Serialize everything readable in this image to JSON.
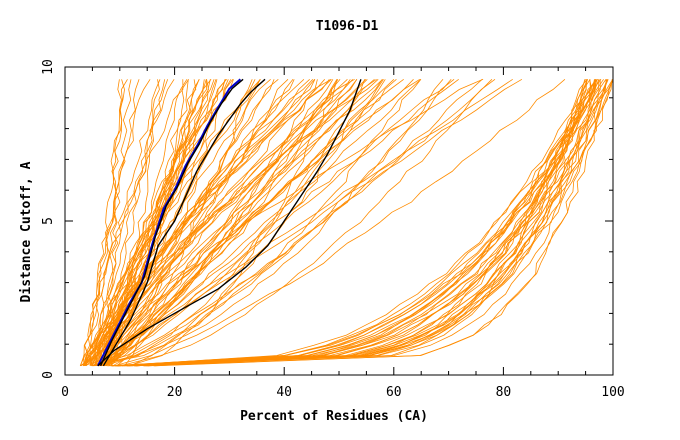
{
  "chart_data": {
    "type": "line",
    "title": "T1096-D1",
    "xlabel": "Percent of Residues (CA)",
    "ylabel": "Distance Cutoff, A",
    "xlim": [
      0,
      100
    ],
    "ylim": [
      0,
      10
    ],
    "x_ticks": [
      "0",
      "20",
      "40",
      "60",
      "80",
      "100"
    ],
    "y_ticks": [
      "0",
      "5",
      "10"
    ],
    "grid": false,
    "legend": "none",
    "colors": {
      "bundle": "#ff8c00",
      "highlight_black": "#000000",
      "highlight_blue": "#0000cc"
    },
    "series": [
      {
        "color": "#0000cc",
        "x": [
          6,
          8,
          10,
          12,
          14,
          16,
          18,
          20,
          22,
          24,
          26,
          28,
          30,
          32
        ],
        "y": [
          0.3,
          1.0,
          1.7,
          2.4,
          3.0,
          4.3,
          5.4,
          6.0,
          6.8,
          7.4,
          8.1,
          8.7,
          9.3,
          9.6
        ]
      },
      {
        "color": "#000000",
        "x": [
          6.5,
          8.5,
          10.5,
          12.5,
          14.5,
          16.5,
          18.5,
          20.5,
          22.5,
          24.5,
          26.5,
          28.5,
          30.5,
          32.5
        ],
        "y": [
          0.3,
          1.1,
          1.8,
          2.5,
          3.2,
          4.5,
          5.5,
          6.1,
          6.9,
          7.5,
          8.2,
          8.8,
          9.3,
          9.6
        ]
      },
      {
        "color": "#000000",
        "x": [
          7,
          9,
          12,
          15,
          17,
          20,
          22,
          24,
          26,
          28,
          30,
          32,
          34,
          36.5
        ],
        "y": [
          0.3,
          0.9,
          1.8,
          3.0,
          4.2,
          5.0,
          5.8,
          6.6,
          7.2,
          7.8,
          8.3,
          8.8,
          9.2,
          9.6
        ]
      },
      {
        "color": "#000000",
        "x": [
          6,
          9,
          15,
          22,
          28,
          33,
          37,
          40,
          43,
          46,
          48,
          50,
          52,
          54
        ],
        "y": [
          0.3,
          0.8,
          1.5,
          2.2,
          2.8,
          3.5,
          4.2,
          5.0,
          5.8,
          6.6,
          7.2,
          7.9,
          8.6,
          9.6
        ]
      }
    ],
    "bundle_groups": [
      {
        "count": 70,
        "x_start": [
          3,
          8
        ],
        "x_end": [
          10,
          60
        ]
      },
      {
        "count": 25,
        "x_start": [
          5,
          12
        ],
        "x_end": [
          45,
          92
        ]
      },
      {
        "count": 35,
        "x_start": [
          8,
          16
        ],
        "x_end": [
          95,
          100
        ]
      }
    ]
  }
}
